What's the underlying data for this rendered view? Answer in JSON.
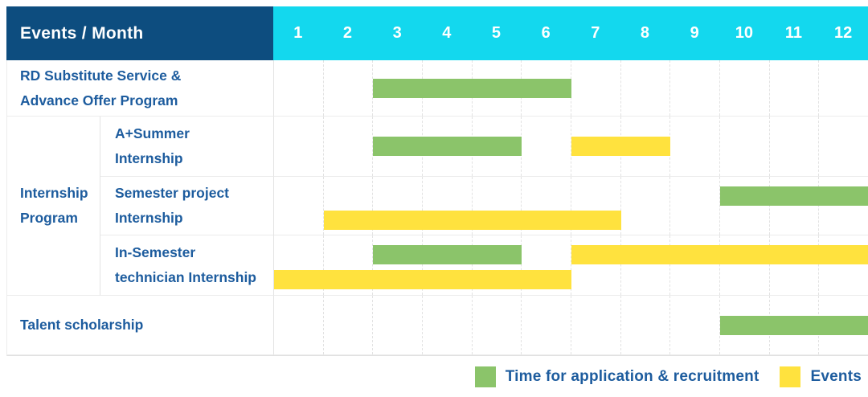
{
  "colors": {
    "header_navy": "#0d4d7f",
    "header_cyan": "#13d8ee",
    "green": "#8bc46a",
    "yellow": "#ffe23e",
    "label_blue": "#1d5c9e"
  },
  "legend": [
    {
      "kind": "application_recruitment",
      "color": "#8bc46a",
      "label": "Time for application & recruitment"
    },
    {
      "kind": "events",
      "color": "#ffe23e",
      "label": "Events"
    }
  ],
  "chart_data": {
    "type": "gantt",
    "title": "Events / Month",
    "xlabel": "Month",
    "months": [
      "1",
      "2",
      "3",
      "4",
      "5",
      "6",
      "7",
      "8",
      "9",
      "10",
      "11",
      "12"
    ],
    "x_range": [
      1,
      12
    ],
    "grid": "dashed-vertical",
    "legend_position": "bottom-right",
    "bar_kinds": {
      "application_recruitment": "Time for application & recruitment",
      "events": "Events"
    },
    "rows": [
      {
        "label": "RD Substitute Service & Advance Offer Program",
        "label_lines": [
          "RD Substitute Service &",
          "Advance Offer Program"
        ],
        "group": null,
        "bars": [
          {
            "kind": "application_recruitment",
            "start_month": 3,
            "end_month": 6,
            "line": "center"
          }
        ]
      },
      {
        "label": "A+Summer Internship",
        "label_lines": [
          "A+Summer",
          "Internship"
        ],
        "group": "Internship Program",
        "group_lines": [
          "Internship",
          "Program"
        ],
        "bars": [
          {
            "kind": "application_recruitment",
            "start_month": 3,
            "end_month": 5,
            "line": "center"
          },
          {
            "kind": "events",
            "start_month": 7,
            "end_month": 8,
            "line": "center"
          }
        ]
      },
      {
        "label": "Semester project Internship",
        "label_lines": [
          "Semester project",
          "Internship"
        ],
        "group": "Internship Program",
        "bars": [
          {
            "kind": "application_recruitment",
            "start_month": 10,
            "end_month": 12,
            "line": "top"
          },
          {
            "kind": "events",
            "start_month": 2,
            "end_month": 7,
            "line": "bottom"
          }
        ]
      },
      {
        "label": "In-Semester technician Internship",
        "label_lines": [
          "In-Semester",
          "technician Internship"
        ],
        "group": "Internship Program",
        "bars": [
          {
            "kind": "application_recruitment",
            "start_month": 3,
            "end_month": 5,
            "line": "top"
          },
          {
            "kind": "events",
            "start_month": 7,
            "end_month": 12,
            "line": "top"
          },
          {
            "kind": "events",
            "start_month": 1,
            "end_month": 6,
            "line": "bottom"
          }
        ]
      },
      {
        "label": "Talent scholarship",
        "label_lines": [
          "Talent scholarship"
        ],
        "group": null,
        "bars": [
          {
            "kind": "application_recruitment",
            "start_month": 10,
            "end_month": 12,
            "line": "center"
          }
        ]
      }
    ]
  }
}
